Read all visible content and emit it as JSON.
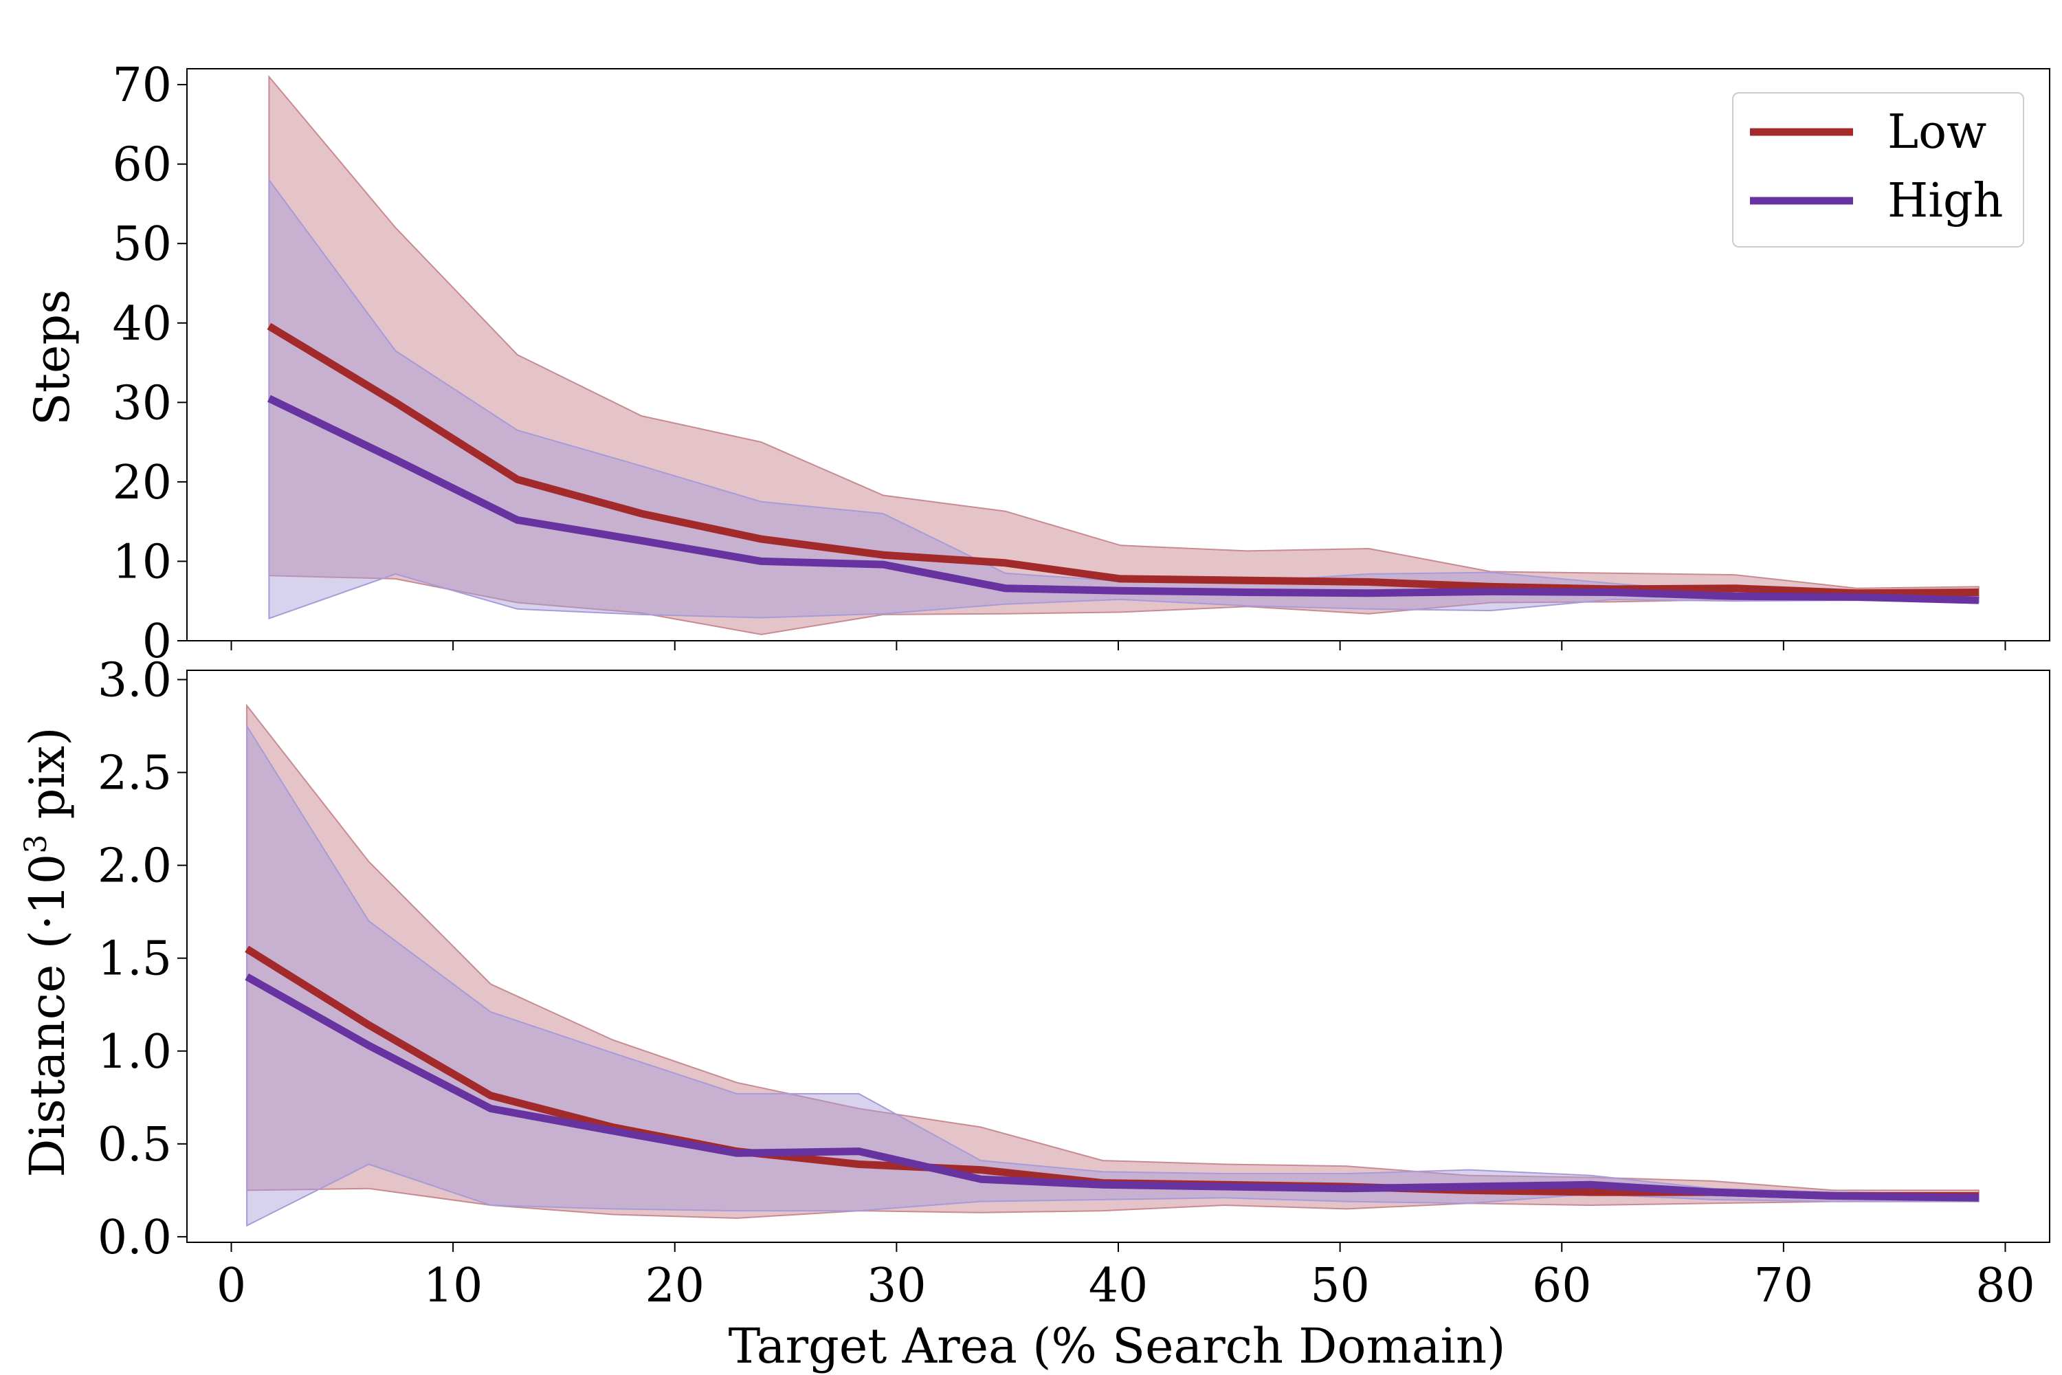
{
  "colors": {
    "low": "#a32a2a",
    "high": "#6633a0",
    "low_band": "#c98a91",
    "high_band": "#a79bd9",
    "axis": "#000000",
    "legend_border": "#cccccc"
  },
  "legend": {
    "low_label": "Low",
    "high_label": "High"
  },
  "chart_data": [
    {
      "type": "line",
      "panel": "top",
      "title": "",
      "xlabel": "",
      "ylabel": "Steps",
      "xlim": [
        -2,
        82
      ],
      "ylim": [
        0,
        72
      ],
      "xticks": [
        0,
        10,
        20,
        30,
        40,
        50,
        60,
        70,
        80
      ],
      "yticks": [
        0,
        10,
        20,
        30,
        40,
        50,
        60,
        70
      ],
      "x": [
        1.7,
        7.4,
        12.9,
        18.5,
        23.9,
        29.4,
        34.9,
        40.1,
        45.8,
        51.3,
        56.8,
        62.3,
        67.8,
        73.3,
        78.8
      ],
      "series": [
        {
          "name": "Low",
          "values": [
            39.6,
            30.0,
            20.3,
            16.0,
            12.8,
            10.8,
            9.8,
            7.8,
            7.6,
            7.4,
            6.8,
            6.5,
            6.6,
            6.0,
            6.1
          ],
          "lower": [
            8.2,
            7.8,
            4.8,
            3.5,
            0.8,
            3.3,
            3.4,
            3.6,
            4.3,
            3.4,
            4.8,
            4.9,
            5.2,
            5.3,
            5.4
          ],
          "upper": [
            71.0,
            52.0,
            36.0,
            28.3,
            25.0,
            18.3,
            16.3,
            12.0,
            11.3,
            11.6,
            8.7,
            8.5,
            8.3,
            6.6,
            6.8
          ]
        },
        {
          "name": "High",
          "values": [
            30.5,
            22.8,
            15.2,
            12.6,
            10.0,
            9.6,
            6.6,
            6.3,
            6.1,
            6.0,
            6.2,
            6.1,
            5.6,
            5.5,
            5.1
          ],
          "lower": [
            2.8,
            8.4,
            4.0,
            3.3,
            2.9,
            3.4,
            4.6,
            5.2,
            4.4,
            4.0,
            3.8,
            5.2,
            5.0,
            5.1,
            4.8
          ],
          "upper": [
            58.0,
            36.5,
            26.5,
            22.0,
            17.5,
            16.0,
            8.5,
            7.5,
            7.4,
            8.4,
            8.6,
            7.2,
            6.1,
            5.9,
            5.5
          ]
        }
      ]
    },
    {
      "type": "line",
      "panel": "bottom",
      "title": "",
      "xlabel": "Target Area (% Search Domain)",
      "ylabel": "Distance (·10³ pix)",
      "ylabel_main": "Distance (·10",
      "ylabel_sup": "3",
      "ylabel_tail": " pix)",
      "xlim": [
        -2,
        82
      ],
      "ylim": [
        -0.03,
        3.05
      ],
      "xticks": [
        0,
        10,
        20,
        30,
        40,
        50,
        60,
        70,
        80
      ],
      "yticks": [
        0.0,
        0.5,
        1.0,
        1.5,
        2.0,
        2.5,
        3.0
      ],
      "xtick_labels": [
        "0",
        "10",
        "20",
        "30",
        "40",
        "50",
        "60",
        "70",
        "80"
      ],
      "ytick_labels": [
        "0.0",
        "0.5",
        "1.0",
        "1.5",
        "2.0",
        "2.5",
        "3.0"
      ],
      "x": [
        0.7,
        6.2,
        11.7,
        17.2,
        22.8,
        28.3,
        33.8,
        39.3,
        44.8,
        50.3,
        55.8,
        61.3,
        66.8,
        72.3,
        78.8
      ],
      "series": [
        {
          "name": "Low",
          "values": [
            1.55,
            1.14,
            0.76,
            0.59,
            0.46,
            0.39,
            0.36,
            0.29,
            0.28,
            0.27,
            0.25,
            0.24,
            0.24,
            0.22,
            0.22
          ],
          "lower": [
            0.25,
            0.26,
            0.17,
            0.12,
            0.1,
            0.14,
            0.13,
            0.14,
            0.17,
            0.15,
            0.18,
            0.17,
            0.18,
            0.19,
            0.19
          ],
          "upper": [
            2.86,
            2.02,
            1.36,
            1.06,
            0.83,
            0.69,
            0.59,
            0.41,
            0.39,
            0.38,
            0.33,
            0.32,
            0.3,
            0.25,
            0.25
          ]
        },
        {
          "name": "High",
          "values": [
            1.4,
            1.03,
            0.69,
            0.57,
            0.45,
            0.46,
            0.31,
            0.28,
            0.27,
            0.26,
            0.27,
            0.28,
            0.24,
            0.22,
            0.21
          ],
          "lower": [
            0.06,
            0.39,
            0.17,
            0.15,
            0.14,
            0.14,
            0.19,
            0.2,
            0.21,
            0.19,
            0.18,
            0.23,
            0.2,
            0.19,
            0.19
          ],
          "upper": [
            2.75,
            1.7,
            1.21,
            0.99,
            0.77,
            0.77,
            0.41,
            0.35,
            0.34,
            0.34,
            0.36,
            0.33,
            0.26,
            0.24,
            0.23
          ]
        }
      ]
    }
  ]
}
